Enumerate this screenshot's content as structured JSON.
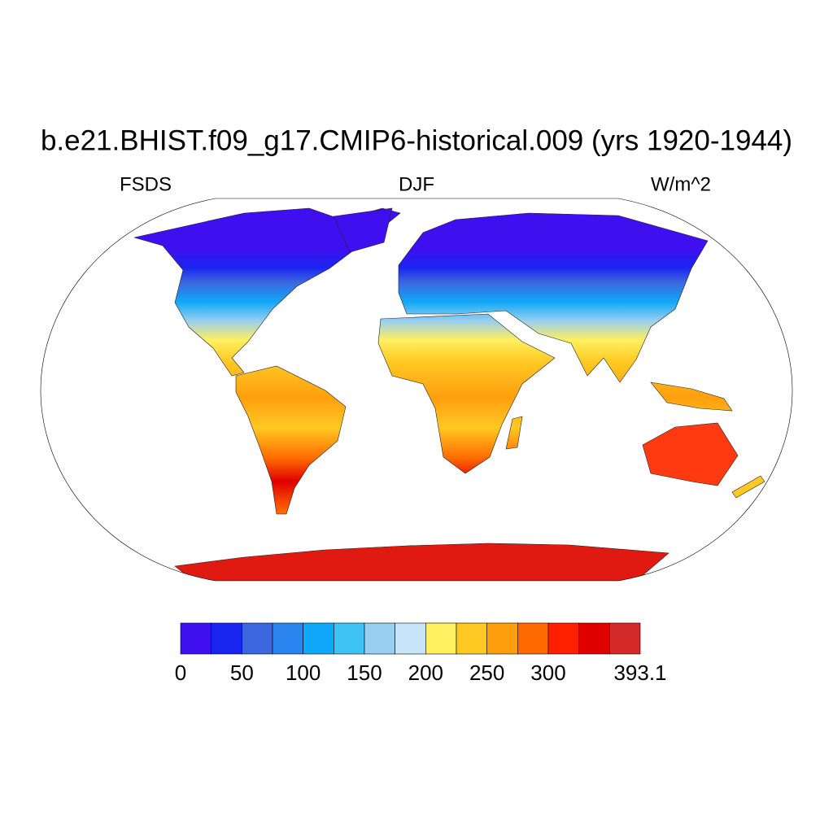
{
  "map": {
    "title": "b.e21.BHIST.f09_g17.CMIP6-historical.009 (yrs 1920-1944)",
    "left_label": "FSDS",
    "center_label": "DJF",
    "right_label": "W/m^2",
    "colorbar": {
      "levels": [
        0,
        25,
        50,
        75,
        100,
        125,
        150,
        175,
        200,
        225,
        250,
        275,
        300,
        325,
        350,
        393.1
      ],
      "colors": [
        "#3f0ff0",
        "#1a24f0",
        "#3b68e0",
        "#2a85f0",
        "#10a8f8",
        "#3fc3f5",
        "#98cef0",
        "#c8e4f8",
        "#fff060",
        "#ffc822",
        "#ff9f0e",
        "#ff6a00",
        "#ff2000",
        "#e00000",
        "#d42a2a"
      ],
      "ticks": [
        0,
        50,
        100,
        150,
        200,
        250,
        300,
        393.1
      ]
    }
  }
}
